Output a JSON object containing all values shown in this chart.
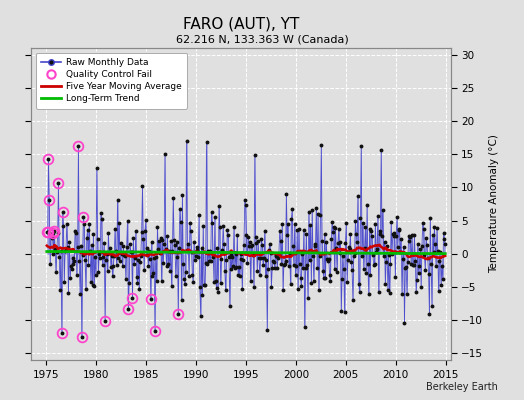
{
  "title": "FARO (AUT), YT",
  "subtitle": "62.216 N, 133.363 W (Canada)",
  "ylabel": "Temperature Anomaly (°C)",
  "xlim": [
    1973.5,
    2015.5
  ],
  "ylim": [
    -16,
    31
  ],
  "yticks": [
    -15,
    -10,
    -5,
    0,
    5,
    10,
    15,
    20,
    25,
    30
  ],
  "xticks": [
    1975,
    1980,
    1985,
    1990,
    1995,
    2000,
    2005,
    2010,
    2015
  ],
  "background_color": "#e0e0e0",
  "plot_bg_color": "#e0e0e0",
  "grid_color": "#ffffff",
  "line_color": "#4444cc",
  "stem_color": "#8888dd",
  "marker_color": "#111111",
  "moving_avg_color": "#cc0000",
  "trend_color": "#00bb00",
  "qc_fail_color": "#ff44cc",
  "watermark": "Berkeley Earth",
  "seed": 137
}
